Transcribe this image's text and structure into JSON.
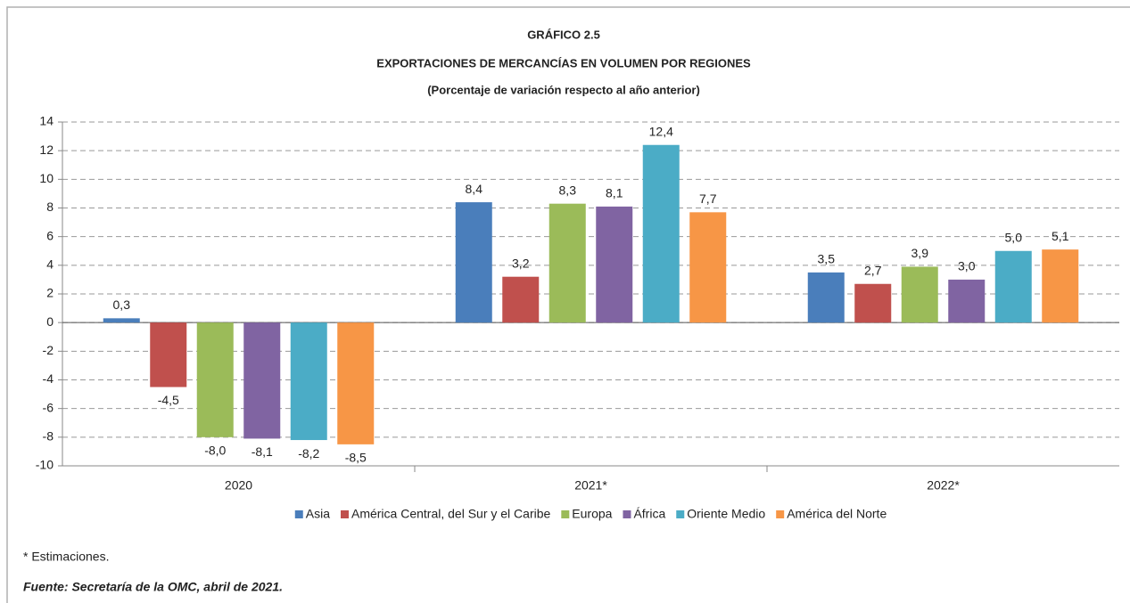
{
  "chart_data": {
    "type": "bar",
    "title": "GRÁFICO 2.5",
    "subtitle": "EXPORTACIONES DE MERCANCÍAS EN VOLUMEN POR REGIONES",
    "subtitle2": "(Porcentaje de variación respecto al año anterior)",
    "categories": [
      "2020",
      "2021*",
      "2022*"
    ],
    "series": [
      {
        "name": "Asia",
        "color": "#4a7ebb",
        "values": [
          0.3,
          8.4,
          3.5
        ],
        "value_labels": [
          "0,3",
          "8,4",
          "3,5"
        ]
      },
      {
        "name": "América Central, del Sur y el Caribe",
        "color": "#c0504d",
        "values": [
          -4.5,
          3.2,
          2.7
        ],
        "value_labels": [
          "-4,5",
          "3,2",
          "2,7"
        ]
      },
      {
        "name": "Europa",
        "color": "#9bbb59",
        "values": [
          -8.0,
          8.3,
          3.9
        ],
        "value_labels": [
          "-8,0",
          "8,3",
          "3,9"
        ]
      },
      {
        "name": "África",
        "color": "#8064a2",
        "values": [
          -8.1,
          8.1,
          3.0
        ],
        "value_labels": [
          "-8,1",
          "8,1",
          "3,0"
        ]
      },
      {
        "name": "Oriente Medio",
        "color": "#4bacc6",
        "values": [
          -8.2,
          12.4,
          5.0
        ],
        "value_labels": [
          "-8,2",
          "12,4",
          "5,0"
        ]
      },
      {
        "name": "América del Norte",
        "color": "#f79646",
        "values": [
          -8.5,
          7.7,
          5.1
        ],
        "value_labels": [
          "-8,5",
          "7,7",
          "5,1"
        ]
      }
    ],
    "ylim": [
      -10,
      14
    ],
    "yticks": [
      -10,
      -8,
      -6,
      -4,
      -2,
      0,
      2,
      4,
      6,
      8,
      10,
      12,
      14
    ],
    "grid": true,
    "legend": "bottom",
    "note": "* Estimaciones.",
    "source": "Fuente: Secretaría de la OMC, abril de 2021."
  }
}
